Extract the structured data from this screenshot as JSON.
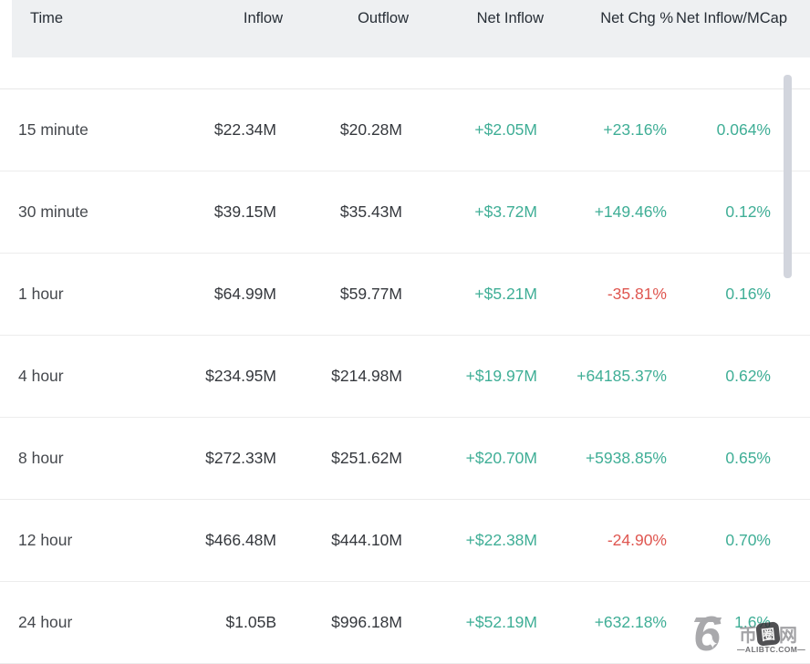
{
  "table": {
    "columns": [
      {
        "label": "Time"
      },
      {
        "label": "Inflow"
      },
      {
        "label": "Outflow"
      },
      {
        "label": "Net Inflow"
      },
      {
        "label": "Net Chg %"
      },
      {
        "label": "Net Inflow/MCap"
      }
    ],
    "rows": [
      {
        "time": "15 minute",
        "inflow": "$22.34M",
        "outflow": "$20.28M",
        "net_inflow": "+$2.05M",
        "net_inflow_dir": "up",
        "net_chg": "+23.16%",
        "net_chg_dir": "up",
        "mcap": "0.064%",
        "mcap_dir": "up"
      },
      {
        "time": "30 minute",
        "inflow": "$39.15M",
        "outflow": "$35.43M",
        "net_inflow": "+$3.72M",
        "net_inflow_dir": "up",
        "net_chg": "+149.46%",
        "net_chg_dir": "up",
        "mcap": "0.12%",
        "mcap_dir": "up"
      },
      {
        "time": "1 hour",
        "inflow": "$64.99M",
        "outflow": "$59.77M",
        "net_inflow": "+$5.21M",
        "net_inflow_dir": "up",
        "net_chg": "-35.81%",
        "net_chg_dir": "down",
        "mcap": "0.16%",
        "mcap_dir": "up"
      },
      {
        "time": "4 hour",
        "inflow": "$234.95M",
        "outflow": "$214.98M",
        "net_inflow": "+$19.97M",
        "net_inflow_dir": "up",
        "net_chg": "+64185.37%",
        "net_chg_dir": "up",
        "mcap": "0.62%",
        "mcap_dir": "up"
      },
      {
        "time": "8 hour",
        "inflow": "$272.33M",
        "outflow": "$251.62M",
        "net_inflow": "+$20.70M",
        "net_inflow_dir": "up",
        "net_chg": "+5938.85%",
        "net_chg_dir": "up",
        "mcap": "0.65%",
        "mcap_dir": "up"
      },
      {
        "time": "12 hour",
        "inflow": "$466.48M",
        "outflow": "$444.10M",
        "net_inflow": "+$22.38M",
        "net_inflow_dir": "up",
        "net_chg": "-24.90%",
        "net_chg_dir": "down",
        "mcap": "0.70%",
        "mcap_dir": "up"
      },
      {
        "time": "24 hour",
        "inflow": "$1.05B",
        "outflow": "$996.18M",
        "net_inflow": "+$52.19M",
        "net_inflow_dir": "up",
        "net_chg": "+632.18%",
        "net_chg_dir": "up",
        "mcap": "1.6%",
        "mcap_dir": "up"
      }
    ]
  },
  "colors": {
    "up_green": "#3fae96",
    "down_red": "#df5650",
    "header_bg": "#eef0f2",
    "header_text": "#272e36",
    "body_text": "#35383d",
    "scrollbar_thumb": "#d2d5dd"
  },
  "watermark": {
    "logo_glyph": "6",
    "star_glyph": "✦",
    "cn_left": "币",
    "cn_badge": "圈",
    "cn_right": "网",
    "domain": "—ALIBTC.COM—"
  }
}
